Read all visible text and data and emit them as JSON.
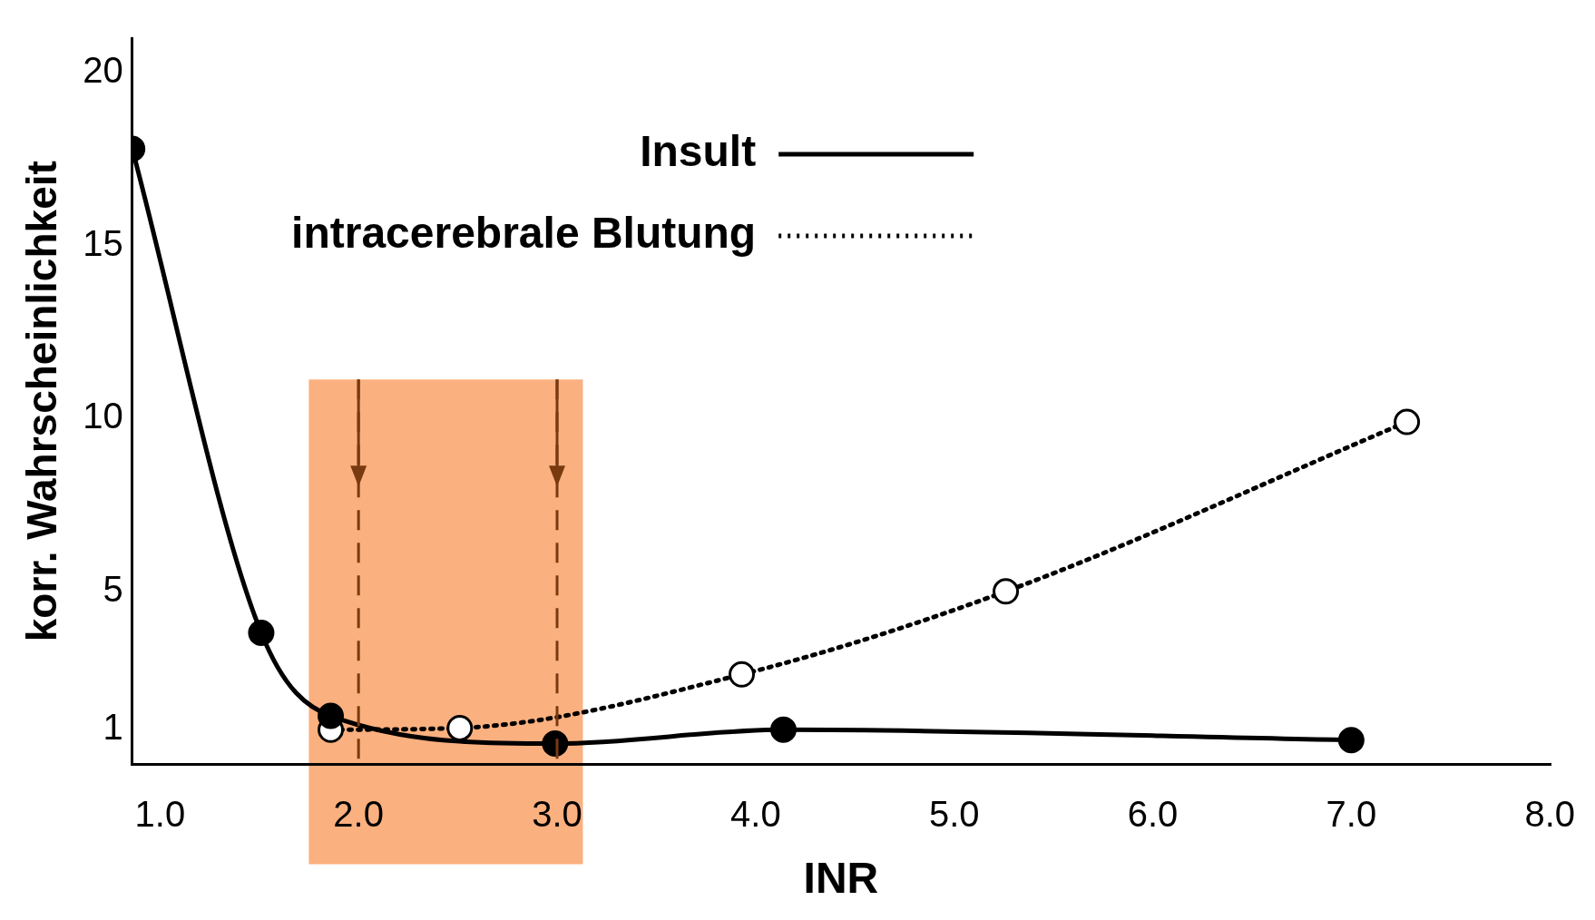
{
  "chart_data": {
    "type": "line",
    "xlabel": "INR",
    "ylabel": "korr. Wahrscheinlichkeit",
    "xlim": [
      0.86,
      8.0
    ],
    "xticks": [
      {
        "value": 1,
        "label": "1.0"
      },
      {
        "value": 2,
        "label": "2.0"
      },
      {
        "value": 3,
        "label": "3.0"
      },
      {
        "value": 4,
        "label": "4.0"
      },
      {
        "value": 5,
        "label": "5.0"
      },
      {
        "value": 6,
        "label": "6.0"
      },
      {
        "value": 7,
        "label": "7.0"
      },
      {
        "value": 8,
        "label": "8.0"
      }
    ],
    "ylim": [
      0,
      21
    ],
    "yticks": [
      1,
      5,
      10,
      15,
      20
    ],
    "grid": false,
    "legend": "top",
    "marker": "circle",
    "series": [
      {
        "name": "Insult",
        "color": "#000000",
        "line_style": "solid",
        "x": [
          0.86,
          1.51,
          1.86,
          2.99,
          4.14,
          7.0
        ],
        "values": [
          17.8,
          3.8,
          1.4,
          0.6,
          1.0,
          0.7
        ]
      },
      {
        "name": "intracerebrale Blutung",
        "color": "#000000",
        "line_style": "dotted",
        "x": [
          1.86,
          2.51,
          3.93,
          5.26,
          7.28
        ],
        "values": [
          1.0,
          1.05,
          2.6,
          5.0,
          9.9
        ]
      }
    ],
    "bands": [
      {
        "axis": "x",
        "from": 1.75,
        "to": 3.13,
        "color": "#fbb07f"
      }
    ],
    "ref_lines": [
      {
        "axis": "x",
        "value": 2,
        "color": "#7a3a10",
        "line_style": "dashed"
      },
      {
        "axis": "x",
        "value": 3,
        "color": "#7a3a10",
        "line_style": "dashed"
      }
    ]
  }
}
